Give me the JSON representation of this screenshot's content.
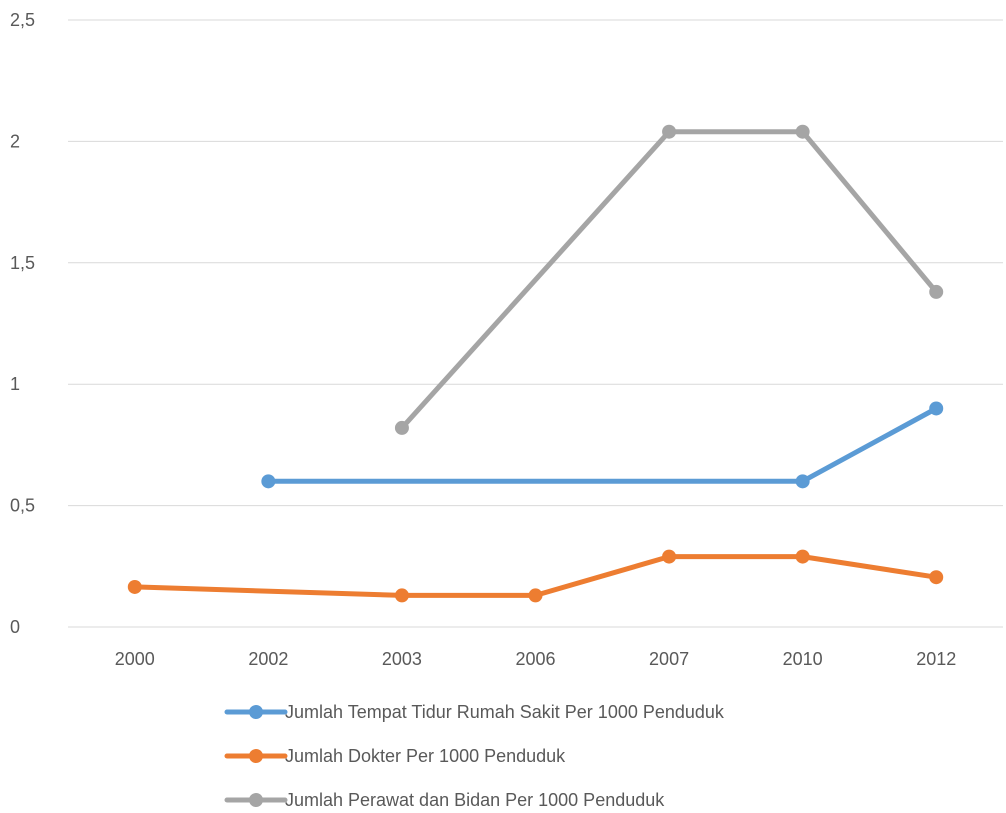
{
  "chart_data": {
    "type": "line",
    "categories": [
      "2000",
      "2002",
      "2003",
      "2006",
      "2007",
      "2010",
      "2012"
    ],
    "y_ticks": [
      "0",
      "0,5",
      "1",
      "1,5",
      "2",
      "2,5"
    ],
    "ylim": [
      0,
      2.5
    ],
    "grid": true,
    "legend_position": "bottom",
    "series": [
      {
        "name": "Jumlah Tempat Tidur Rumah Sakit Per 1000 Penduduk",
        "color": "#5b9bd5",
        "values": [
          null,
          0.6,
          null,
          null,
          null,
          0.6,
          0.9
        ]
      },
      {
        "name": "Jumlah Dokter Per 1000 Penduduk",
        "color": "#ed7d31",
        "values": [
          0.165,
          null,
          0.13,
          0.13,
          0.29,
          0.29,
          0.205
        ]
      },
      {
        "name": "Jumlah Perawat dan Bidan Per 1000 Penduduk",
        "color": "#a5a5a5",
        "values": [
          null,
          null,
          0.82,
          null,
          2.04,
          2.04,
          1.38
        ]
      }
    ]
  }
}
